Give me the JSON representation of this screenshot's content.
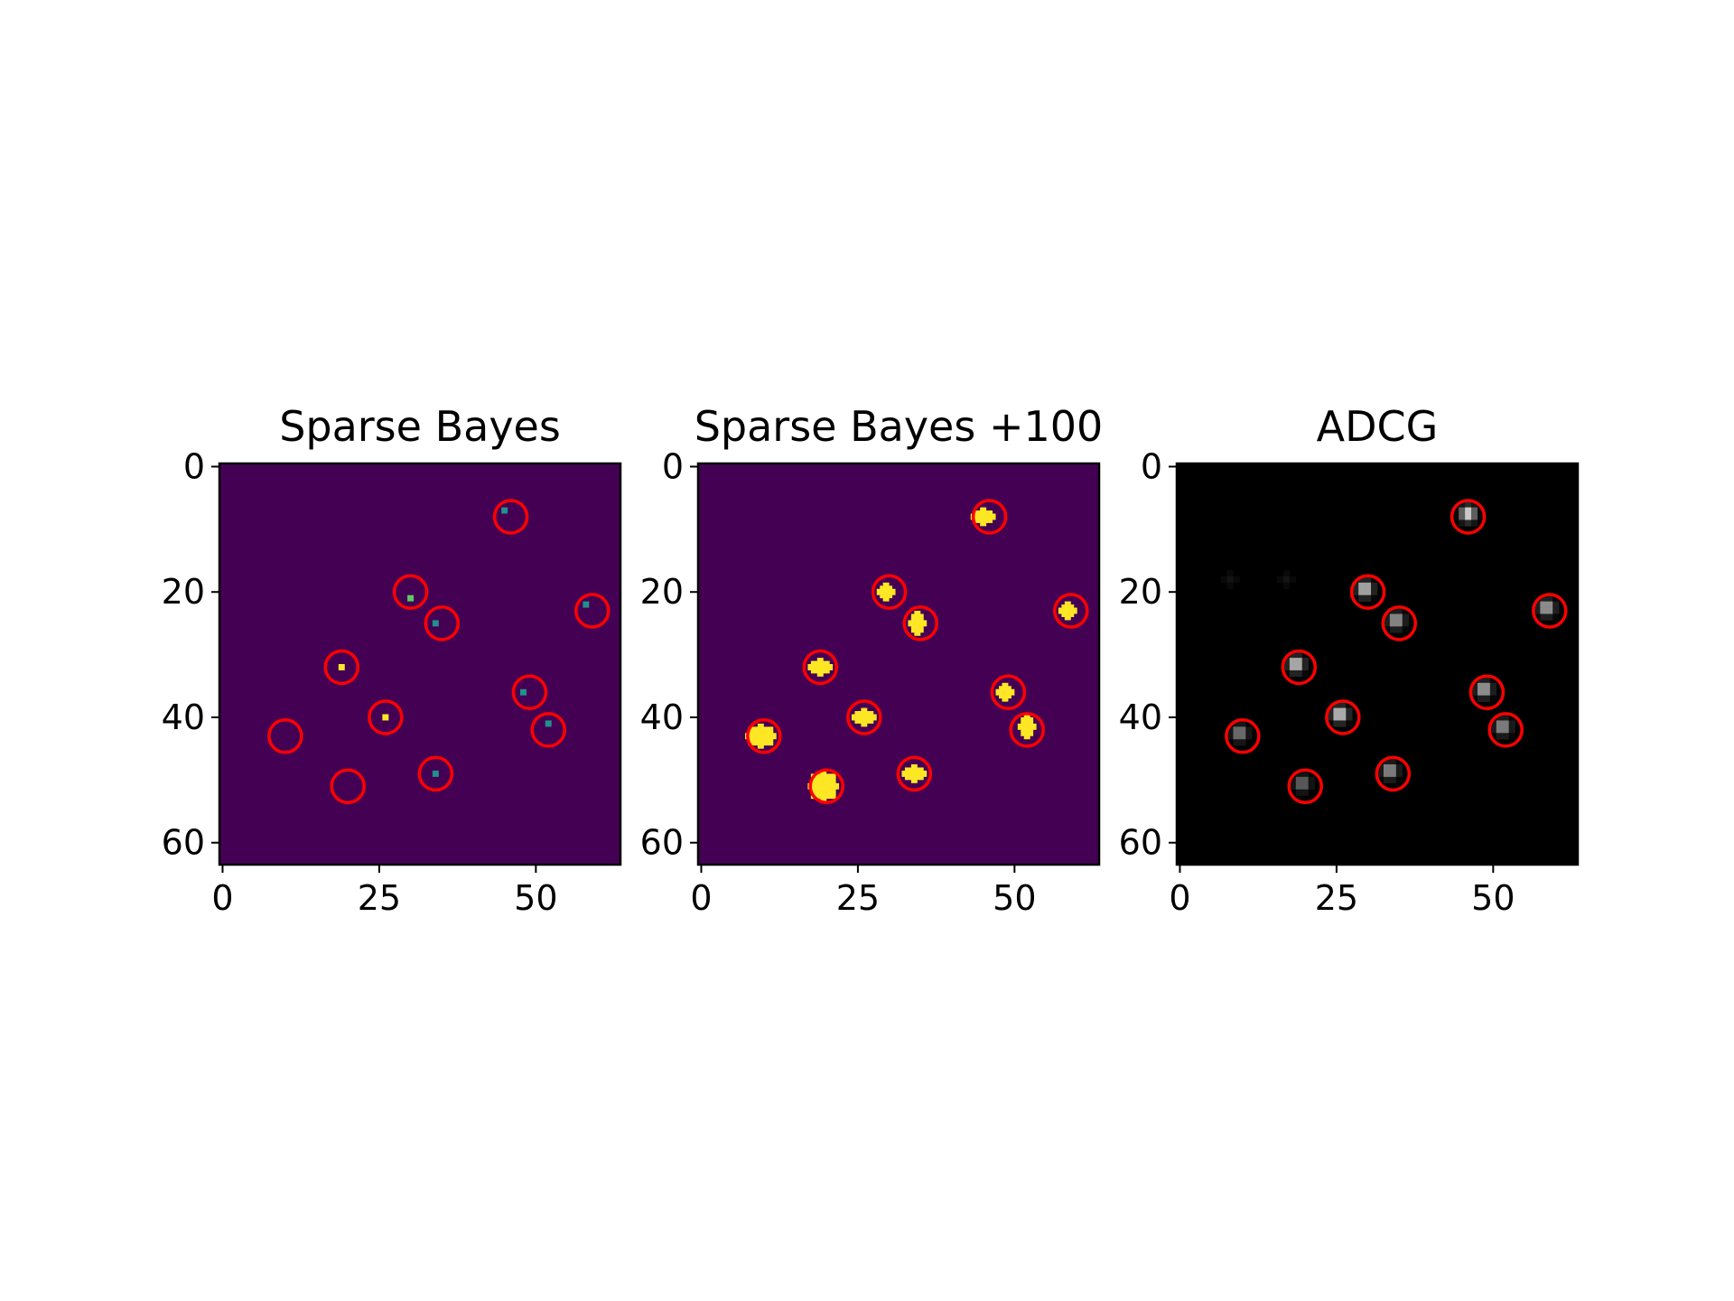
{
  "chart_data": [
    {
      "type": "heatmap",
      "title": "Sparse Bayes",
      "colormap": "viridis",
      "background_color": "#440154",
      "xlim": [
        0,
        64
      ],
      "ylim": [
        64,
        0
      ],
      "xticks": [
        0,
        25,
        50
      ],
      "yticks": [
        0,
        20,
        40,
        60
      ],
      "circles": [
        [
          46,
          8
        ],
        [
          30,
          20
        ],
        [
          35,
          25
        ],
        [
          59,
          23
        ],
        [
          19,
          32
        ],
        [
          49,
          36
        ],
        [
          26,
          40
        ],
        [
          52,
          42
        ],
        [
          10,
          43
        ],
        [
          34,
          49
        ],
        [
          20,
          51
        ]
      ],
      "circle_color": "#ff0000",
      "pixels": [
        {
          "x": 45,
          "y": 7,
          "color": "#21918c"
        },
        {
          "x": 30,
          "y": 21,
          "color": "#5ec962"
        },
        {
          "x": 34,
          "y": 25,
          "color": "#21918c"
        },
        {
          "x": 58,
          "y": 22,
          "color": "#21918c"
        },
        {
          "x": 19,
          "y": 32,
          "color": "#fde725"
        },
        {
          "x": 48,
          "y": 36,
          "color": "#21918c"
        },
        {
          "x": 26,
          "y": 40,
          "color": "#fde725"
        },
        {
          "x": 52,
          "y": 41,
          "color": "#21918c"
        },
        {
          "x": 34,
          "y": 49,
          "color": "#21918c"
        }
      ]
    },
    {
      "type": "heatmap",
      "title": "Sparse Bayes +100",
      "colormap": "viridis",
      "background_color": "#440154",
      "xlim": [
        0,
        64
      ],
      "ylim": [
        64,
        0
      ],
      "xticks": [
        0,
        25,
        50
      ],
      "yticks": [
        0,
        20,
        40,
        60
      ],
      "circles": [
        [
          46,
          8
        ],
        [
          30,
          20
        ],
        [
          35,
          25
        ],
        [
          59,
          23
        ],
        [
          19,
          32
        ],
        [
          49,
          36
        ],
        [
          26,
          40
        ],
        [
          52,
          42
        ],
        [
          10,
          43
        ],
        [
          34,
          49
        ],
        [
          20,
          51
        ]
      ],
      "circle_color": "#ff0000",
      "blob_color": "#fde725",
      "blobs": [
        {
          "x": 45,
          "y": 8,
          "w": 4,
          "h": 3
        },
        {
          "x": 29.5,
          "y": 20,
          "w": 3,
          "h": 3
        },
        {
          "x": 34.5,
          "y": 25,
          "w": 3,
          "h": 4
        },
        {
          "x": 58.5,
          "y": 23,
          "w": 3,
          "h": 3
        },
        {
          "x": 19,
          "y": 32,
          "w": 4,
          "h": 3
        },
        {
          "x": 48.5,
          "y": 36,
          "w": 3,
          "h": 3
        },
        {
          "x": 26,
          "y": 40,
          "w": 4,
          "h": 3
        },
        {
          "x": 52,
          "y": 41.5,
          "w": 3,
          "h": 4
        },
        {
          "x": 9.5,
          "y": 43,
          "w": 5,
          "h": 4
        },
        {
          "x": 34,
          "y": 49,
          "w": 4,
          "h": 3
        },
        {
          "x": 19.5,
          "y": 51,
          "w": 5,
          "h": 5
        }
      ]
    },
    {
      "type": "heatmap",
      "title": "ADCG",
      "colormap": "gray",
      "background_color": "#000000",
      "xlim": [
        0,
        64
      ],
      "ylim": [
        64,
        0
      ],
      "xticks": [
        0,
        25,
        50
      ],
      "yticks": [
        0,
        20,
        40,
        60
      ],
      "circles": [
        [
          46,
          8
        ],
        [
          30,
          20
        ],
        [
          35,
          25
        ],
        [
          59,
          23
        ],
        [
          19,
          32
        ],
        [
          49,
          36
        ],
        [
          26,
          40
        ],
        [
          52,
          42
        ],
        [
          10,
          43
        ],
        [
          34,
          49
        ],
        [
          20,
          51
        ]
      ],
      "circle_color": "#ff0000",
      "spots": [
        {
          "x": 46,
          "y": 7.5,
          "v": 0.95
        },
        {
          "x": 29.5,
          "y": 19.5,
          "v": 0.92
        },
        {
          "x": 34.5,
          "y": 24.5,
          "v": 0.75
        },
        {
          "x": 58.5,
          "y": 22.5,
          "v": 0.8
        },
        {
          "x": 18.5,
          "y": 31.5,
          "v": 0.95
        },
        {
          "x": 48.5,
          "y": 35.5,
          "v": 0.8
        },
        {
          "x": 25.5,
          "y": 39.5,
          "v": 0.98
        },
        {
          "x": 51.5,
          "y": 41.5,
          "v": 0.7
        },
        {
          "x": 9.5,
          "y": 42.5,
          "v": 0.6
        },
        {
          "x": 33.5,
          "y": 48.5,
          "v": 0.7
        },
        {
          "x": 19.5,
          "y": 50.5,
          "v": 0.5
        },
        {
          "x": 8,
          "y": 18,
          "v": 0.08
        },
        {
          "x": 17,
          "y": 18,
          "v": 0.08
        }
      ]
    }
  ]
}
